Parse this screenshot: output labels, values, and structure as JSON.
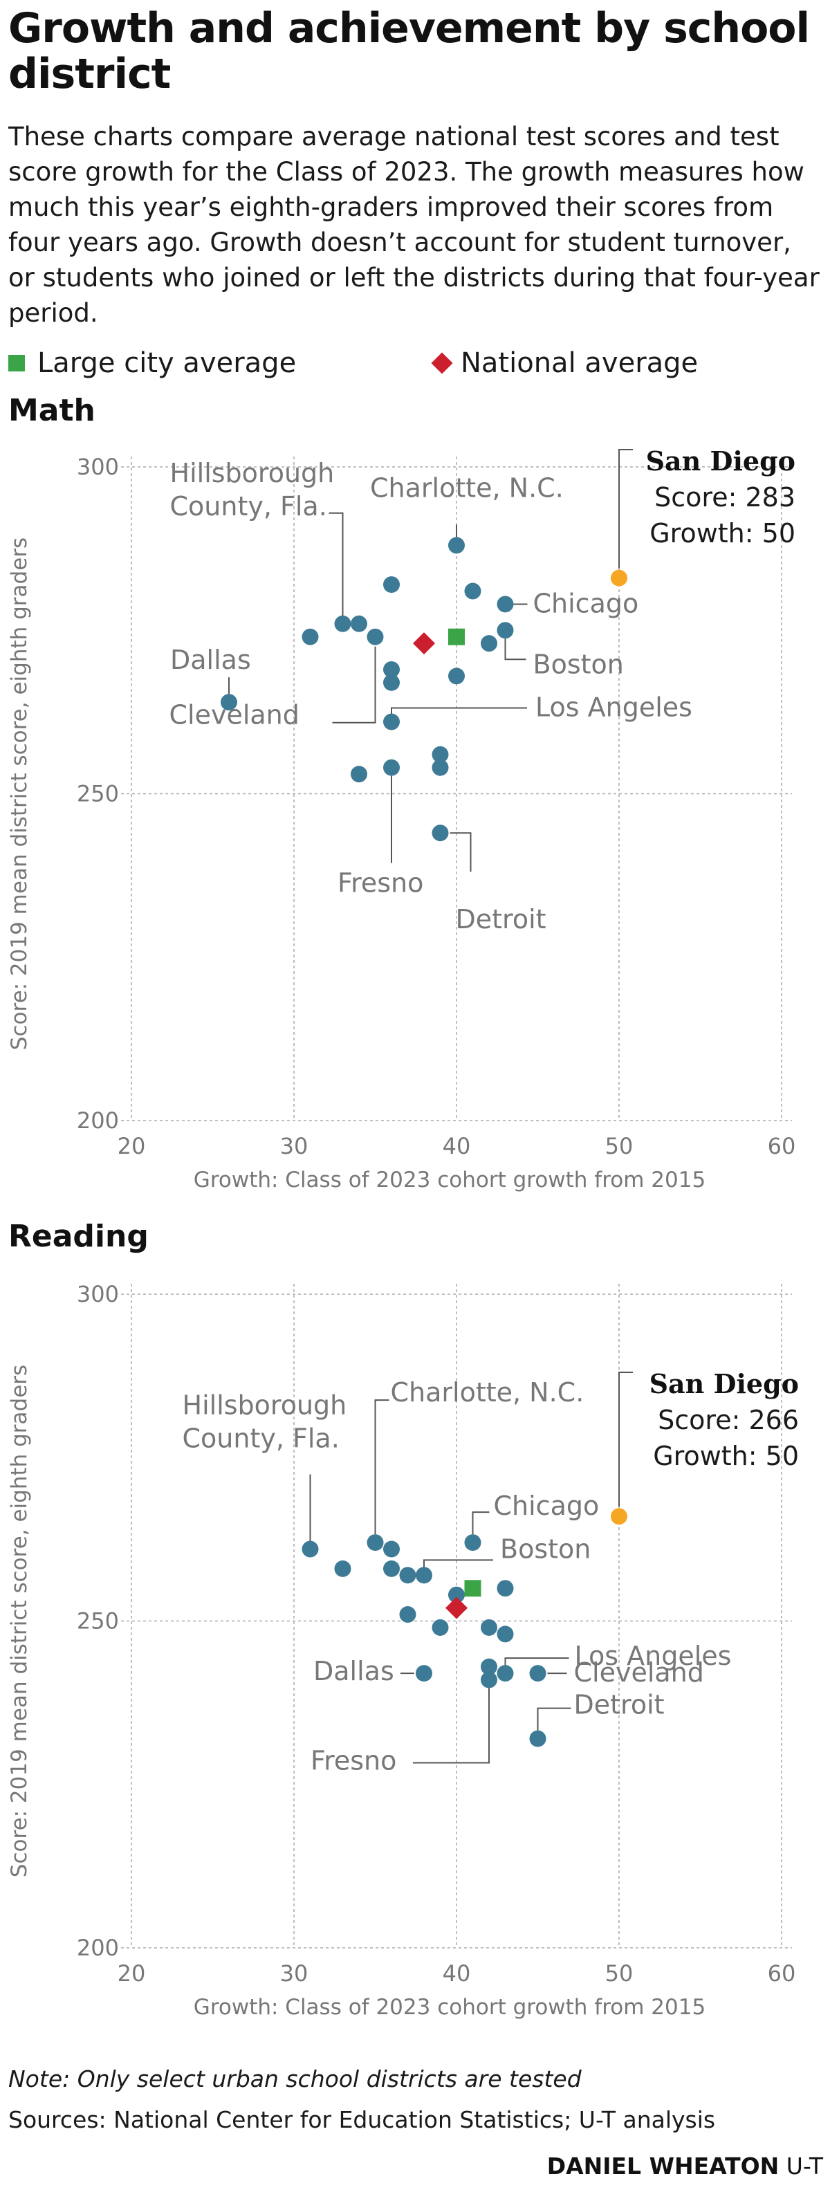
{
  "title": "Growth and achievement by school district",
  "intro": "These charts compare average national test scores and test score growth for the Class of 2023. The growth measures how much this year’s eighth-graders improved their scores from four years ago. Growth doesn’t account for student turnover, or students who joined or left the districts during that four-year period.",
  "legend": {
    "large_city": "Large city average",
    "national": "National average"
  },
  "colors": {
    "district": "#3d7a95",
    "san_diego": "#f5a623",
    "large_city_avg": "#3aa447",
    "national_avg": "#cc1f2e",
    "grid": "#aaaaaa",
    "label": "#777777"
  },
  "note": "Note: Only select urban school districts are tested",
  "sources": "Sources: National Center for Education Statistics; U-T analysis",
  "credit": {
    "name": "DANIEL WHEATON",
    "org": "U-T"
  },
  "chart_data": [
    {
      "title": "Math",
      "type": "scatter",
      "xlabel": "Growth: Class of 2023 cohort growth from 2015",
      "ylabel": "Score: 2019 mean district score, eighth graders",
      "xlim": [
        20,
        60
      ],
      "ylim": [
        200,
        300
      ],
      "xticks": [
        20,
        30,
        40,
        50,
        60
      ],
      "yticks": [
        200,
        250,
        300
      ],
      "grid": true,
      "points": [
        {
          "x": 26,
          "y": 264
        },
        {
          "x": 31,
          "y": 274
        },
        {
          "x": 33,
          "y": 276
        },
        {
          "x": 34,
          "y": 276
        },
        {
          "x": 34,
          "y": 253
        },
        {
          "x": 35,
          "y": 274
        },
        {
          "x": 36,
          "y": 282
        },
        {
          "x": 36,
          "y": 269
        },
        {
          "x": 36,
          "y": 267
        },
        {
          "x": 36,
          "y": 261
        },
        {
          "x": 36,
          "y": 254
        },
        {
          "x": 39,
          "y": 256
        },
        {
          "x": 39,
          "y": 254
        },
        {
          "x": 39,
          "y": 244
        },
        {
          "x": 40,
          "y": 288
        },
        {
          "x": 40,
          "y": 268
        },
        {
          "x": 41,
          "y": 281
        },
        {
          "x": 42,
          "y": 273
        },
        {
          "x": 43,
          "y": 279
        },
        {
          "x": 43,
          "y": 275
        }
      ],
      "san_diego": {
        "name": "San Diego",
        "score_text": "Score: 283",
        "growth_text": "Growth: 50",
        "x": 50,
        "y": 283
      },
      "large_city_avg": {
        "x": 40,
        "y": 274
      },
      "national_avg": {
        "x": 38,
        "y": 273
      },
      "annotations": [
        {
          "lines": [
            "Hillsborough",
            "County, Fla."
          ],
          "x": 33,
          "y": 276
        },
        {
          "lines": [
            "Charlotte, N.C."
          ],
          "x": 40,
          "y": 288
        },
        {
          "lines": [
            "Chicago"
          ],
          "x": 43,
          "y": 279
        },
        {
          "lines": [
            "Boston"
          ],
          "x": 43,
          "y": 275
        },
        {
          "lines": [
            "Los Angeles"
          ],
          "x": 36,
          "y": 261
        },
        {
          "lines": [
            "Dallas"
          ],
          "x": 26,
          "y": 264
        },
        {
          "lines": [
            "Cleveland"
          ],
          "x": 35,
          "y": 274
        },
        {
          "lines": [
            "Fresno"
          ],
          "x": 36,
          "y": 254
        },
        {
          "lines": [
            "Detroit"
          ],
          "x": 39,
          "y": 244
        }
      ]
    },
    {
      "title": "Reading",
      "type": "scatter",
      "xlabel": "Growth: Class of 2023 cohort growth from 2015",
      "ylabel": "Score: 2019 mean district score, eighth graders",
      "xlim": [
        20,
        60
      ],
      "ylim": [
        200,
        300
      ],
      "xticks": [
        20,
        30,
        40,
        50,
        60
      ],
      "yticks": [
        200,
        250,
        300
      ],
      "grid": true,
      "points": [
        {
          "x": 31,
          "y": 261
        },
        {
          "x": 33,
          "y": 258
        },
        {
          "x": 35,
          "y": 262
        },
        {
          "x": 36,
          "y": 261
        },
        {
          "x": 36,
          "y": 258
        },
        {
          "x": 37,
          "y": 257
        },
        {
          "x": 37,
          "y": 251
        },
        {
          "x": 38,
          "y": 257
        },
        {
          "x": 38,
          "y": 242
        },
        {
          "x": 39,
          "y": 249
        },
        {
          "x": 40,
          "y": 254
        },
        {
          "x": 41,
          "y": 262
        },
        {
          "x": 42,
          "y": 249
        },
        {
          "x": 42,
          "y": 243
        },
        {
          "x": 42,
          "y": 241
        },
        {
          "x": 43,
          "y": 255
        },
        {
          "x": 43,
          "y": 248
        },
        {
          "x": 43,
          "y": 242
        },
        {
          "x": 45,
          "y": 242
        },
        {
          "x": 45,
          "y": 232
        }
      ],
      "san_diego": {
        "name": "San Diego",
        "score_text": "Score: 266",
        "growth_text": "Growth: 50",
        "x": 50,
        "y": 266
      },
      "large_city_avg": {
        "x": 41,
        "y": 255
      },
      "national_avg": {
        "x": 40,
        "y": 252
      },
      "annotations": [
        {
          "lines": [
            "Hillsborough",
            "County, Fla."
          ],
          "x": 31,
          "y": 261
        },
        {
          "lines": [
            "Charlotte, N.C."
          ],
          "x": 35,
          "y": 262
        },
        {
          "lines": [
            "Chicago"
          ],
          "x": 41,
          "y": 262
        },
        {
          "lines": [
            "Boston"
          ],
          "x": 38,
          "y": 257
        },
        {
          "lines": [
            "Los Angeles"
          ],
          "x": 43,
          "y": 242
        },
        {
          "lines": [
            "Dallas"
          ],
          "x": 38,
          "y": 242
        },
        {
          "lines": [
            "Cleveland"
          ],
          "x": 45,
          "y": 242
        },
        {
          "lines": [
            "Fresno"
          ],
          "x": 42,
          "y": 241
        },
        {
          "lines": [
            "Detroit"
          ],
          "x": 45,
          "y": 232
        }
      ]
    }
  ]
}
